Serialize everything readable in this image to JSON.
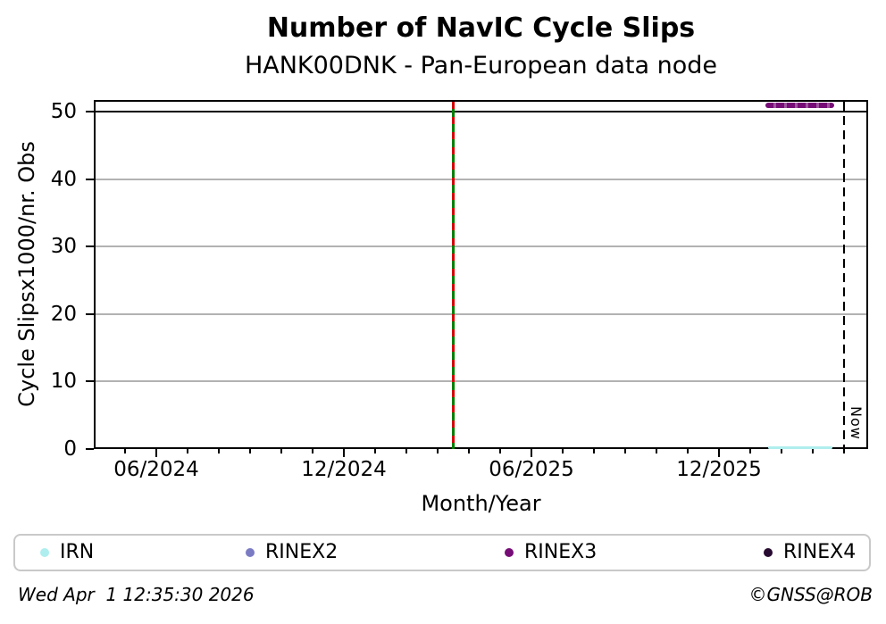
{
  "header": {
    "title": "Number of NavIC Cycle Slips",
    "subtitle": "HANK00DNK - Pan-European data node"
  },
  "chart_data": {
    "type": "line",
    "title": "Number of NavIC Cycle Slips",
    "subtitle": "HANK00DNK - Pan-European data node",
    "xlabel": "Month/Year",
    "ylabel": "Cycle Slipsx1000/nr. Obs",
    "ylim": [
      0,
      51.7
    ],
    "yticks": [
      0,
      10,
      20,
      30,
      40,
      50
    ],
    "xlim": [
      "2024-04-01",
      "2026-04-24"
    ],
    "xticks": [
      {
        "label": "06/2024",
        "date": "2024-06-01"
      },
      {
        "label": "12/2024",
        "date": "2024-12-01"
      },
      {
        "label": "06/2025",
        "date": "2025-06-01"
      },
      {
        "label": "12/2025",
        "date": "2025-12-01"
      }
    ],
    "minor_tick_interval_months": 1,
    "grid": "horizontal-only",
    "threshold_line": {
      "y": 50,
      "color": "#000000"
    },
    "series": [
      {
        "name": "IRN",
        "color": "#afeeee",
        "visible": true,
        "value": 0,
        "start": "2026-01-18",
        "end": "2026-03-20",
        "thickness": 3
      },
      {
        "name": "RINEX2",
        "color": "#7b7bc4",
        "visible": false
      },
      {
        "name": "RINEX3",
        "color": "#760d76",
        "visible": true,
        "value": 51,
        "start": "2026-01-16",
        "end": "2026-03-22",
        "thickness": 6
      },
      {
        "name": "RINEX4",
        "color": "#270a30",
        "visible": false
      }
    ],
    "annotations": {
      "event_line": {
        "date": "2025-03-16",
        "line_color": "#008000",
        "dash_color": "#d40000",
        "style": "solid green with red dashes"
      },
      "now_line": {
        "date": "2026-04-01",
        "label": "Now",
        "color": "#000000",
        "style": "dashed"
      }
    },
    "legend": {
      "position": "bottom",
      "entries": [
        {
          "label": "IRN",
          "color": "#afeeee"
        },
        {
          "label": "RINEX2",
          "color": "#7b7bc4"
        },
        {
          "label": "RINEX3",
          "color": "#760d76"
        },
        {
          "label": "RINEX4",
          "color": "#270a30"
        }
      ]
    }
  },
  "footer": {
    "timestamp": "Wed Apr  1 12:35:30 2026",
    "copyright": "©GNSS@ROB"
  }
}
